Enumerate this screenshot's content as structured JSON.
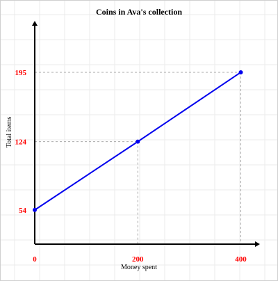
{
  "chart_data": {
    "type": "line",
    "title": "Coins in Ava's collection",
    "xlabel": "Money spent",
    "ylabel": "Total items",
    "x_ticks": [
      0,
      200,
      400
    ],
    "y_ticks": [
      54,
      124,
      195
    ],
    "xlim": [
      0,
      425
    ],
    "ylim": [
      19,
      242
    ],
    "grid": true,
    "series": [
      {
        "x": [
          0,
          200,
          400
        ],
        "values": [
          54,
          124,
          195
        ]
      }
    ],
    "colors": {
      "line": "#0000ee",
      "tick_labels": "#ff0000",
      "guides": "#aaaaaa",
      "grid": "#ebebeb"
    }
  }
}
